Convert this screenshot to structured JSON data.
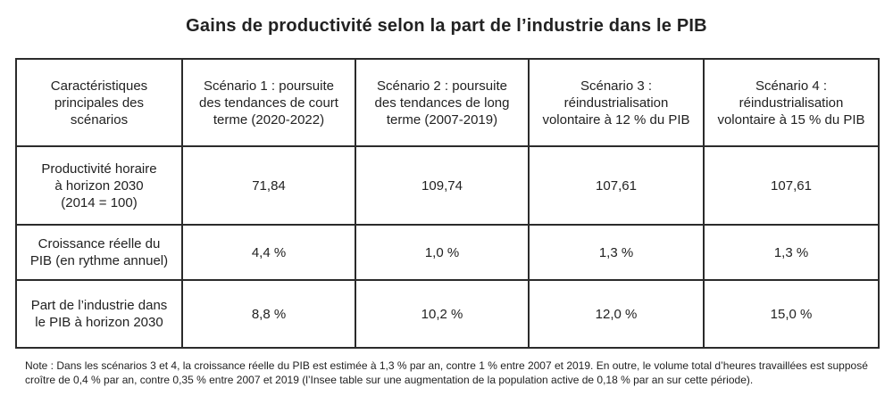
{
  "title": "Gains de productivité selon la part de l’industrie dans le PIB",
  "table": {
    "headers": [
      "Caractéristiques\nprincipales des\nscénarios",
      "Scénario 1 : poursuite\ndes tendances de court\nterme (2020-2022)",
      "Scénario 2 : poursuite\ndes tendances de long\nterme (2007-2019)",
      "Scénario 3 :\nréindustrialisation\nvolontaire à 12 % du PIB",
      "Scénario 4 :\nréindustrialisation\nvolontaire à 15 % du PIB"
    ],
    "rows": [
      {
        "label": "Productivité horaire\nà horizon 2030\n(2014 = 100)",
        "values": [
          "71,84",
          "109,74",
          "107,61",
          "107,61"
        ]
      },
      {
        "label": "Croissance réelle du\nPIB (en rythme annuel)",
        "values": [
          "4,4 %",
          "1,0 %",
          "1,3 %",
          "1,3 %"
        ]
      },
      {
        "label": "Part de l’industrie dans\nle PIB à horizon 2030",
        "values": [
          "8,8 %",
          "10,2 %",
          "12,0 %",
          "15,0 %"
        ]
      }
    ]
  },
  "note": "Note : Dans les scénarios 3 et 4, la croissance réelle du PIB est estimée à 1,3 % par an, contre 1 % entre 2007 et 2019. En outre, le volume total d’heures travaillées est supposé croître de 0,4 % par an, contre 0,35 % entre 2007 et 2019 (l’Insee table sur une augmentation de la population active de 0,18 % par an sur cette période)."
}
